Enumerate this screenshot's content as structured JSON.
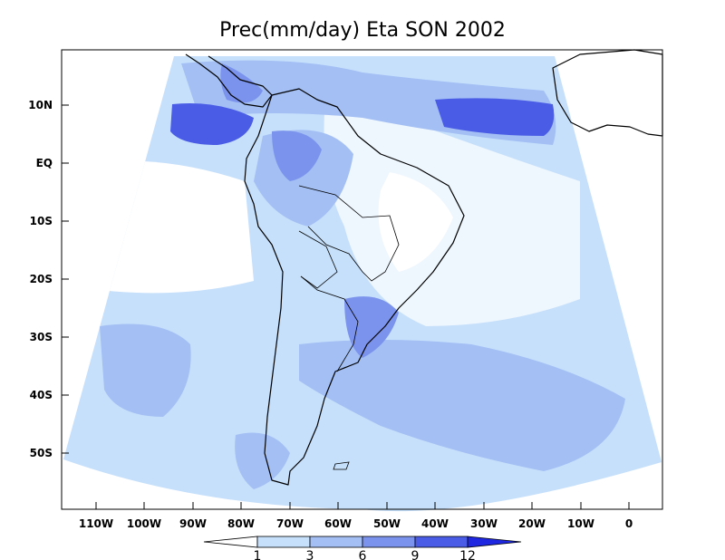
{
  "title": "Prec(mm/day) Eta SON 2002",
  "lon_ticks": [
    "110W",
    "100W",
    "90W",
    "80W",
    "70W",
    "60W",
    "50W",
    "40W",
    "30W",
    "20W",
    "10W",
    "0"
  ],
  "lat_ticks": [
    "10N",
    "EQ",
    "10S",
    "20S",
    "30S",
    "40S",
    "50S"
  ],
  "colorbar": {
    "levels": [
      "1",
      "3",
      "6",
      "9",
      "12"
    ],
    "colors": [
      "#ffffff",
      "#c6e0fb",
      "#a3bff4",
      "#7b93ec",
      "#4a5ce6",
      "#1f28e0"
    ]
  },
  "colors": {
    "frame": "#000000",
    "coast": "#000000"
  }
}
